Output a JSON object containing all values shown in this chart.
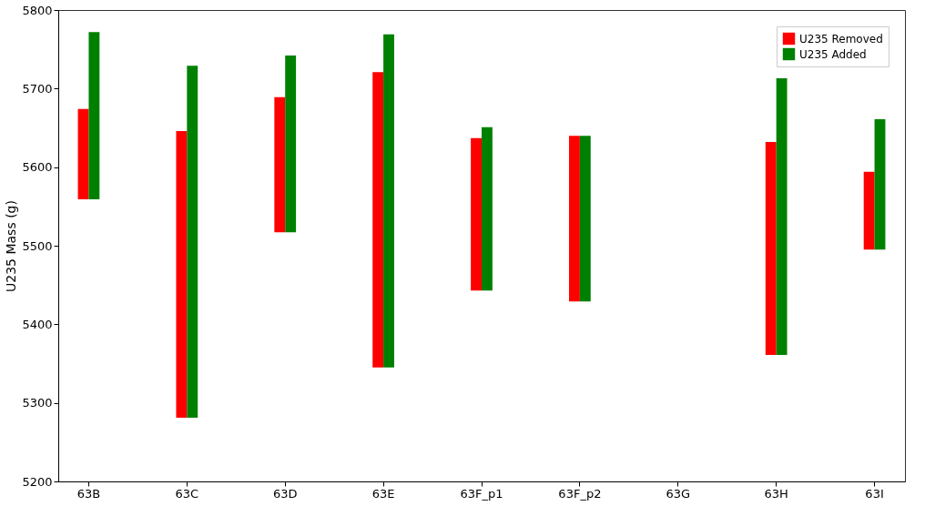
{
  "chart_data": {
    "type": "bar",
    "ylabel": "U235 Mass (g)",
    "categories": [
      "63B",
      "63C",
      "63D",
      "63E",
      "63F_p1",
      "63F_p2",
      "63G",
      "63H",
      "63I"
    ],
    "series": [
      {
        "name": "U235 Removed",
        "color": "#ff0000",
        "base": [
          5559,
          5281,
          5517,
          5345,
          5443,
          5429,
          null,
          5361,
          5495
        ],
        "values": [
          115,
          365,
          172,
          376,
          194,
          211,
          null,
          271,
          99
        ]
      },
      {
        "name": "U235 Added",
        "color": "#008000",
        "base": [
          5559,
          5281,
          5517,
          5345,
          5443,
          5429,
          null,
          5361,
          5495
        ],
        "values": [
          213,
          448,
          225,
          424,
          208,
          211,
          null,
          352,
          166
        ]
      }
    ],
    "ylim": [
      5200,
      5800
    ],
    "yticks": [
      5200,
      5300,
      5400,
      5500,
      5600,
      5700,
      5800
    ],
    "grid": false,
    "legend": "top right"
  }
}
